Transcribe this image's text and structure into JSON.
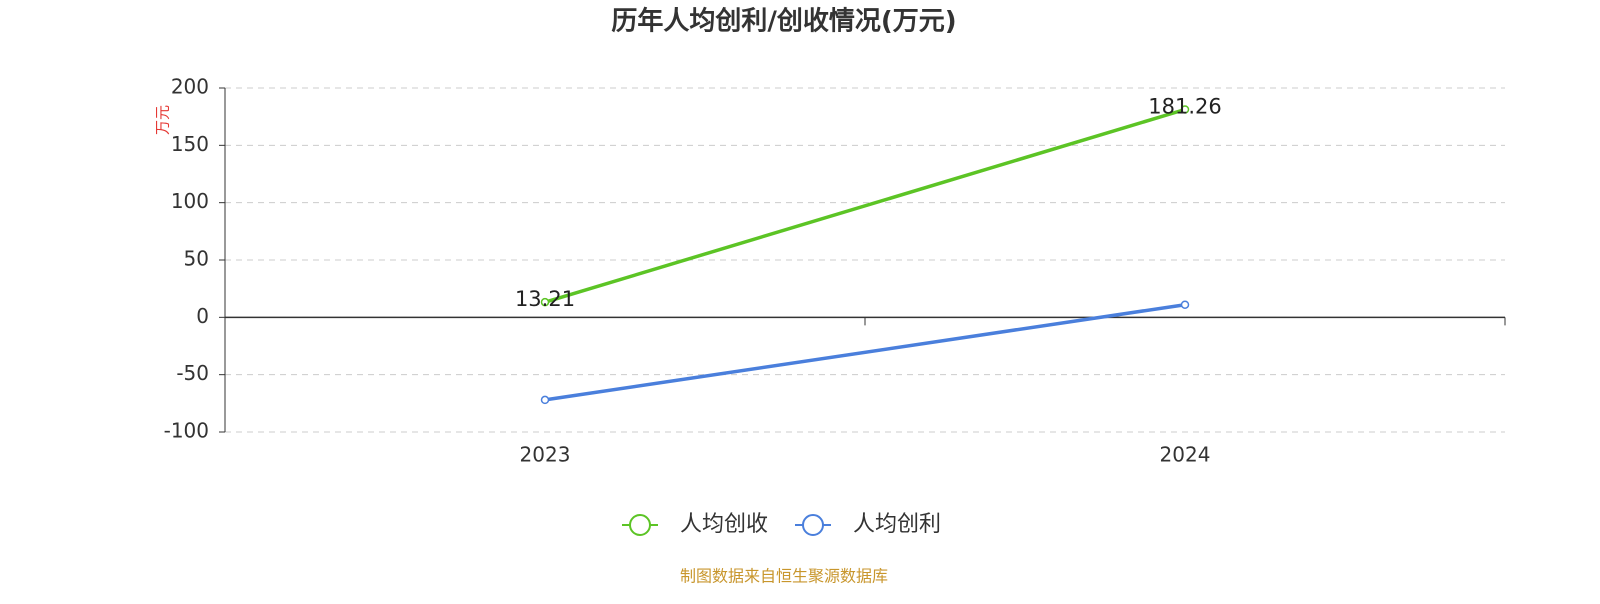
{
  "chart_data": {
    "type": "line",
    "title": "历年人均创利/创收情况(万元)",
    "y_axis_label": "万元",
    "categories": [
      "2023",
      "2024"
    ],
    "series": [
      {
        "name": "人均创收",
        "color": "#5cc425",
        "values": [
          13.21,
          181.26
        ],
        "show_labels": true
      },
      {
        "name": "人均创利",
        "color": "#4a7fdc",
        "values": [
          -72,
          11
        ],
        "show_labels": false
      }
    ],
    "ylim": [
      -100,
      200
    ],
    "yticks": [
      -100,
      -50,
      0,
      50,
      100,
      150,
      200
    ],
    "grid": true,
    "source": "制图数据来自恒生聚源数据库"
  }
}
